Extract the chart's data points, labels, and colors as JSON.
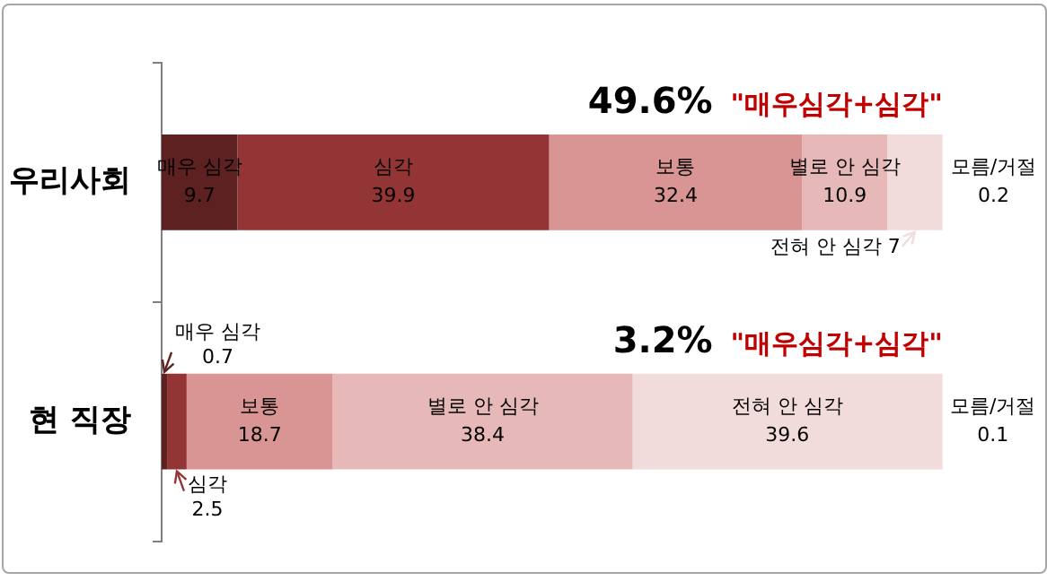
{
  "chart_data": {
    "type": "bar",
    "orientation": "horizontal",
    "stacked": true,
    "categories": [
      "우리사회",
      "현 직장"
    ],
    "series": [
      {
        "name": "매우 심각",
        "color": "#5e2121",
        "values": [
          9.7,
          0.7
        ]
      },
      {
        "name": "심각",
        "color": "#943535",
        "values": [
          39.9,
          2.5
        ]
      },
      {
        "name": "보통",
        "color": "#d99594",
        "values": [
          32.4,
          18.7
        ]
      },
      {
        "name": "별로 안 심각",
        "color": "#e6b8b7",
        "values": [
          10.9,
          38.4
        ]
      },
      {
        "name": "전혀 안 심각",
        "color": "#f2dcdb",
        "values": [
          7,
          39.6
        ]
      },
      {
        "name": "모름/거절",
        "color": "#f7e6e6",
        "values": [
          0.2,
          0.1
        ]
      }
    ],
    "xlim": [
      0,
      100
    ],
    "tick_labels": "y",
    "grid": false,
    "data_labels": true,
    "annotations": [
      "49.6%",
      "\"매우심각+심각\"",
      "3.2%",
      "\"매우심각+심각\""
    ]
  }
}
